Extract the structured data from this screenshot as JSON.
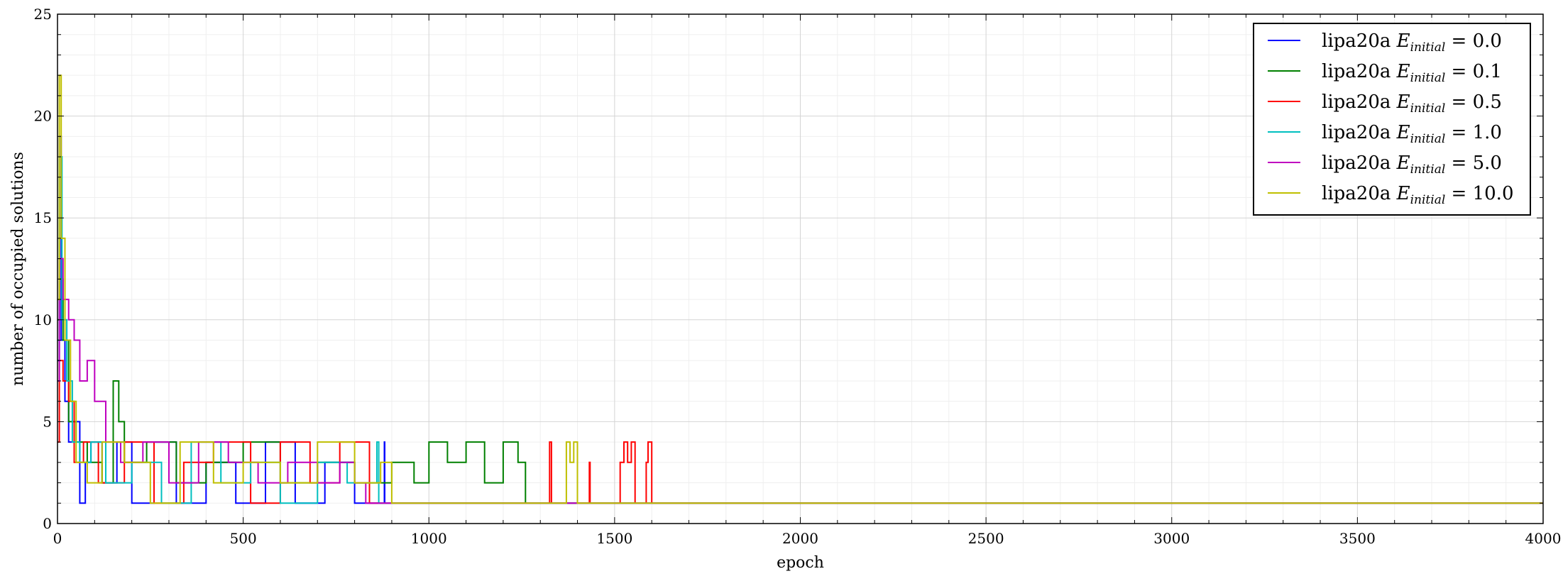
{
  "chart_data": {
    "type": "line",
    "title": "",
    "xlabel": "epoch",
    "ylabel": "number of occupied solutions",
    "xlim": [
      0,
      4000
    ],
    "ylim": [
      0,
      25
    ],
    "xticks": [
      0,
      500,
      1000,
      1500,
      2000,
      2500,
      3000,
      3500,
      4000
    ],
    "yticks": [
      0,
      5,
      10,
      15,
      20,
      25
    ],
    "grid": true,
    "legend_position": "top-right",
    "legend_prefix": "lipa20a",
    "legend_var": "E",
    "legend_sub": "initial",
    "series": [
      {
        "name": "lipa20a E_initial = 0.0",
        "value_label": "0.0",
        "color": "#0000ff",
        "points": [
          [
            0,
            8
          ],
          [
            5,
            19
          ],
          [
            10,
            9
          ],
          [
            20,
            6
          ],
          [
            30,
            4
          ],
          [
            45,
            5
          ],
          [
            60,
            1
          ],
          [
            75,
            3
          ],
          [
            90,
            4
          ],
          [
            120,
            2
          ],
          [
            160,
            4
          ],
          [
            200,
            1
          ],
          [
            260,
            4
          ],
          [
            320,
            1
          ],
          [
            400,
            3
          ],
          [
            480,
            1
          ],
          [
            560,
            4
          ],
          [
            640,
            1
          ],
          [
            720,
            3
          ],
          [
            800,
            1
          ],
          [
            880,
            4
          ],
          [
            881,
            1
          ],
          [
            4000,
            1
          ]
        ]
      },
      {
        "name": "lipa20a E_initial = 0.1",
        "value_label": "0.1",
        "color": "#008000",
        "points": [
          [
            0,
            10
          ],
          [
            5,
            12
          ],
          [
            15,
            9
          ],
          [
            30,
            5
          ],
          [
            50,
            4
          ],
          [
            80,
            3
          ],
          [
            120,
            2
          ],
          [
            150,
            7
          ],
          [
            165,
            5
          ],
          [
            180,
            3
          ],
          [
            240,
            4
          ],
          [
            320,
            2
          ],
          [
            400,
            3
          ],
          [
            500,
            4
          ],
          [
            600,
            2
          ],
          [
            700,
            3
          ],
          [
            800,
            2
          ],
          [
            900,
            3
          ],
          [
            960,
            2
          ],
          [
            1000,
            4
          ],
          [
            1050,
            3
          ],
          [
            1100,
            4
          ],
          [
            1150,
            2
          ],
          [
            1200,
            4
          ],
          [
            1240,
            3
          ],
          [
            1260,
            1
          ],
          [
            4000,
            1
          ]
        ]
      },
      {
        "name": "lipa20a E_initial = 0.5",
        "value_label": "0.5",
        "color": "#ff0000",
        "points": [
          [
            0,
            4
          ],
          [
            5,
            8
          ],
          [
            15,
            7
          ],
          [
            30,
            6
          ],
          [
            45,
            3
          ],
          [
            70,
            4
          ],
          [
            110,
            2
          ],
          [
            180,
            4
          ],
          [
            260,
            1
          ],
          [
            340,
            3
          ],
          [
            420,
            4
          ],
          [
            520,
            1
          ],
          [
            600,
            4
          ],
          [
            680,
            2
          ],
          [
            760,
            4
          ],
          [
            840,
            1
          ],
          [
            860,
            1
          ],
          [
            1320,
            1
          ],
          [
            1325,
            4
          ],
          [
            1330,
            1
          ],
          [
            1430,
            1
          ],
          [
            1432,
            3
          ],
          [
            1434,
            1
          ],
          [
            1510,
            1
          ],
          [
            1515,
            3
          ],
          [
            1525,
            4
          ],
          [
            1535,
            3
          ],
          [
            1545,
            4
          ],
          [
            1555,
            1
          ],
          [
            1580,
            1
          ],
          [
            1585,
            3
          ],
          [
            1590,
            4
          ],
          [
            1600,
            1
          ],
          [
            4000,
            1
          ]
        ]
      },
      {
        "name": "lipa20a E_initial = 1.0",
        "value_label": "1.0",
        "color": "#00bfbf",
        "points": [
          [
            0,
            9
          ],
          [
            5,
            18
          ],
          [
            12,
            10
          ],
          [
            25,
            7
          ],
          [
            40,
            4
          ],
          [
            60,
            3
          ],
          [
            90,
            4
          ],
          [
            130,
            2
          ],
          [
            200,
            3
          ],
          [
            280,
            1
          ],
          [
            360,
            4
          ],
          [
            440,
            2
          ],
          [
            520,
            3
          ],
          [
            600,
            1
          ],
          [
            700,
            3
          ],
          [
            780,
            2
          ],
          [
            860,
            4
          ],
          [
            865,
            1
          ],
          [
            4000,
            1
          ]
        ]
      },
      {
        "name": "lipa20a E_initial = 5.0",
        "value_label": "5.0",
        "color": "#bf00bf",
        "points": [
          [
            0,
            7
          ],
          [
            5,
            13
          ],
          [
            15,
            11
          ],
          [
            30,
            10
          ],
          [
            45,
            9
          ],
          [
            60,
            7
          ],
          [
            80,
            8
          ],
          [
            100,
            6
          ],
          [
            130,
            4
          ],
          [
            170,
            3
          ],
          [
            230,
            4
          ],
          [
            300,
            2
          ],
          [
            380,
            4
          ],
          [
            460,
            3
          ],
          [
            540,
            2
          ],
          [
            620,
            3
          ],
          [
            700,
            2
          ],
          [
            760,
            3
          ],
          [
            800,
            2
          ],
          [
            830,
            1
          ],
          [
            4000,
            1
          ]
        ]
      },
      {
        "name": "lipa20a E_initial = 10.0",
        "value_label": "10.0",
        "color": "#bfbf00",
        "points": [
          [
            0,
            11
          ],
          [
            5,
            22
          ],
          [
            10,
            14
          ],
          [
            20,
            9
          ],
          [
            35,
            6
          ],
          [
            50,
            3
          ],
          [
            80,
            2
          ],
          [
            120,
            4
          ],
          [
            180,
            3
          ],
          [
            250,
            1
          ],
          [
            330,
            4
          ],
          [
            420,
            2
          ],
          [
            500,
            3
          ],
          [
            600,
            2
          ],
          [
            700,
            4
          ],
          [
            800,
            2
          ],
          [
            870,
            3
          ],
          [
            900,
            1
          ],
          [
            1360,
            1
          ],
          [
            1370,
            4
          ],
          [
            1380,
            3
          ],
          [
            1390,
            4
          ],
          [
            1400,
            1
          ],
          [
            4000,
            1
          ]
        ]
      }
    ]
  }
}
